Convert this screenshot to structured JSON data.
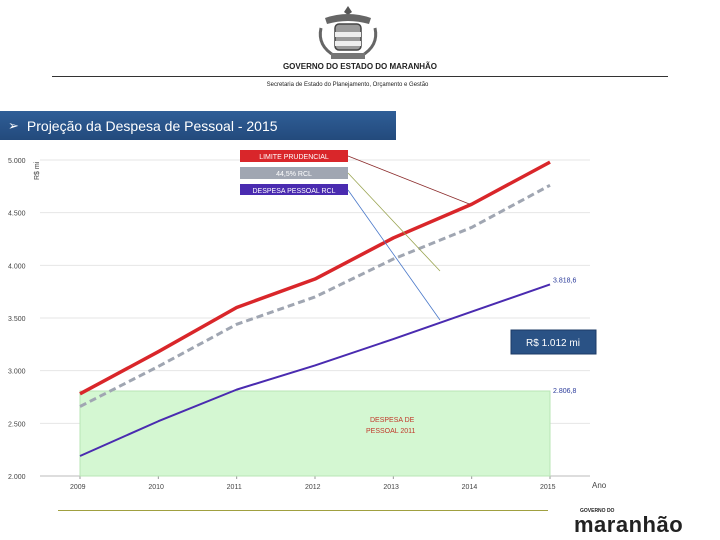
{
  "header": {
    "gov_title": "GOVERNO DO ESTADO DO MARANHÃO",
    "secretaria": "Secretaria de Estado do Planejamento, Orçamento e Gestão"
  },
  "banner": {
    "bullet": "➢",
    "title": "Projeção da Despesa de Pessoal - 2015"
  },
  "logo": {
    "small_text": "GOVERNO DO",
    "big_text": "maranhão"
  },
  "colors": {
    "limite": "#d9262a",
    "rcl445": "#a0a6b2",
    "despesa": "#4a2bb0",
    "despesa_area": "#d4f7d2",
    "banner": "#2a5285"
  },
  "chart_data": {
    "type": "line",
    "ylabel": "R$ mi",
    "xlabel": "Ano",
    "x": [
      "2009",
      "2010",
      "2011",
      "2012",
      "2013",
      "2014",
      "2015"
    ],
    "ylim": [
      2000,
      5000
    ],
    "yticks": [
      "2.000",
      "2.500",
      "3.000",
      "3.500",
      "4.000",
      "4.500",
      "5.000"
    ],
    "series": [
      {
        "name": "LIMITE PRUDENCIAL",
        "values": [
          2780,
          3180,
          3600,
          3870,
          4260,
          4580,
          4980
        ]
      },
      {
        "name": "44,5% RCL",
        "values": [
          2660,
          3040,
          3440,
          3700,
          4060,
          4360,
          4760
        ]
      },
      {
        "name": "DESPESA PESSOAL RCL",
        "values": [
          2190,
          2520,
          2820,
          3050,
          3300,
          3560,
          3818.6
        ]
      }
    ],
    "area": {
      "label": "DESPESA DE PESSOAL 2011",
      "value": 2806.8
    },
    "annotations": {
      "end_value": "3.818,6",
      "area_value": "2.806,8",
      "gap": "R$ 1.012 mi",
      "area_label_1": "DESPESA DE",
      "area_label_2": "PESSOAL 2011"
    },
    "legend_placement": "top-center",
    "grid": true
  }
}
